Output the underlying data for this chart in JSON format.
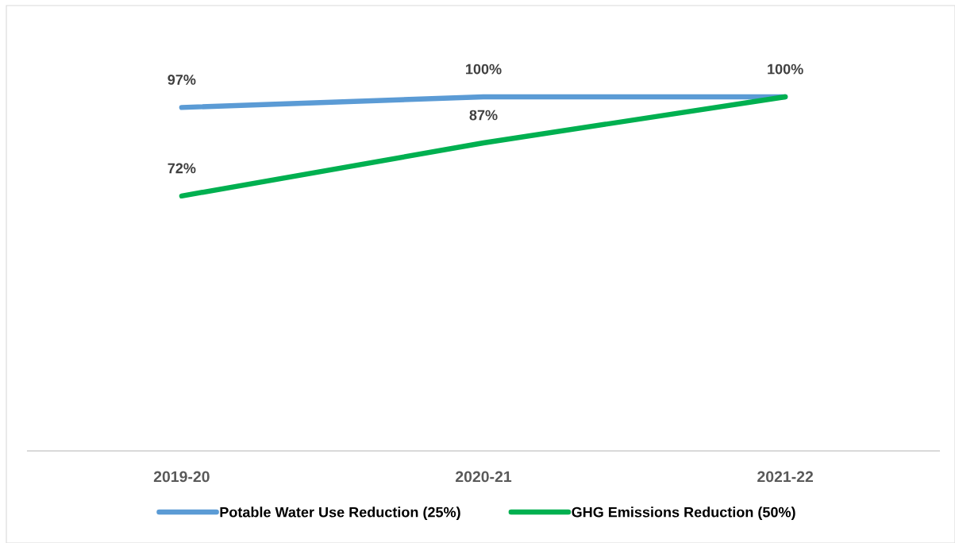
{
  "chart_data": {
    "type": "line",
    "categories": [
      "2019-20",
      "2020-21",
      "2021-22"
    ],
    "series": [
      {
        "name": "Potable Water Use Reduction (25%)",
        "color": "#5b9bd5",
        "values": [
          97,
          100,
          100
        ],
        "value_labels": [
          "97%",
          "100%",
          "100%"
        ]
      },
      {
        "name": "GHG Emissions Reduction (50%)",
        "color": "#00b050",
        "values": [
          72,
          87,
          100
        ],
        "value_labels": [
          "72%",
          "87%",
          null
        ]
      }
    ],
    "tick_labels": "x",
    "grid": false,
    "legend": "bottom",
    "marker": "none",
    "line_style": "solid"
  }
}
